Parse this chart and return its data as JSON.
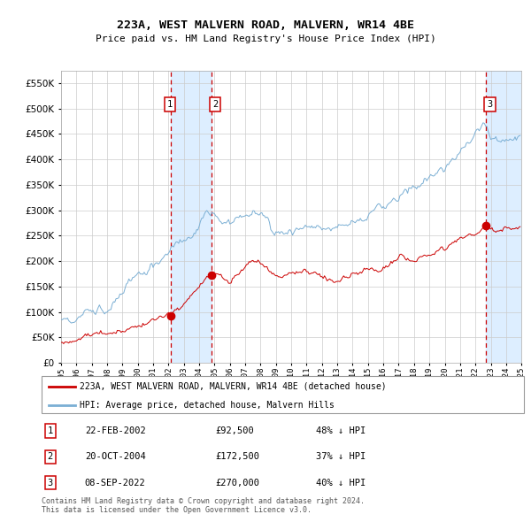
{
  "title": "223A, WEST MALVERN ROAD, MALVERN, WR14 4BE",
  "subtitle": "Price paid vs. HM Land Registry's House Price Index (HPI)",
  "footer": "Contains HM Land Registry data © Crown copyright and database right 2024.\nThis data is licensed under the Open Government Licence v3.0.",
  "legend_line1": "223A, WEST MALVERN ROAD, MALVERN, WR14 4BE (detached house)",
  "legend_line2": "HPI: Average price, detached house, Malvern Hills",
  "transactions": [
    {
      "num": 1,
      "date": "22-FEB-2002",
      "price": 92500,
      "pct": "48%",
      "dir": "↓"
    },
    {
      "num": 2,
      "date": "20-OCT-2004",
      "price": 172500,
      "pct": "37%",
      "dir": "↓"
    },
    {
      "num": 3,
      "date": "08-SEP-2022",
      "price": 270000,
      "pct": "40%",
      "dir": "↓"
    }
  ],
  "hpi_color": "#7bafd4",
  "price_color": "#cc0000",
  "marker_color": "#cc0000",
  "vline_color": "#cc0000",
  "shade_color": "#ddeeff",
  "grid_color": "#cccccc",
  "background_color": "#ffffff",
  "ylim": [
    0,
    575000
  ],
  "yticks": [
    0,
    50000,
    100000,
    150000,
    200000,
    250000,
    300000,
    350000,
    400000,
    450000,
    500000,
    550000
  ],
  "start_year": 1995,
  "end_year": 2025,
  "transaction_years": [
    2002.14,
    2004.8,
    2022.69
  ],
  "transaction_prices": [
    92500,
    172500,
    270000
  ]
}
